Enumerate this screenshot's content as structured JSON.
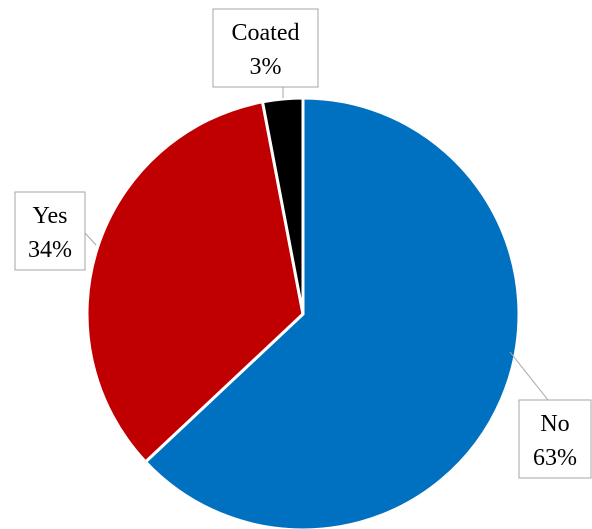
{
  "chart_data": {
    "type": "pie",
    "slices": [
      {
        "label": "No",
        "pct_label": "63%",
        "value": 63,
        "color": "#0070C0"
      },
      {
        "label": "Yes",
        "pct_label": "34%",
        "value": 34,
        "color": "#C00000"
      },
      {
        "label": "Coated",
        "pct_label": "3%",
        "value": 3,
        "color": "#000000"
      }
    ],
    "title": "",
    "legend": "none"
  }
}
